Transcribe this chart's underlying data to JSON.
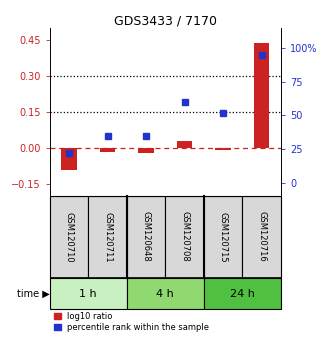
{
  "title": "GDS3433 / 7170",
  "samples": [
    "GSM120710",
    "GSM120711",
    "GSM120648",
    "GSM120708",
    "GSM120715",
    "GSM120716"
  ],
  "log10_ratio": [
    -0.09,
    -0.015,
    -0.02,
    0.03,
    -0.01,
    0.44
  ],
  "percentile_rank": [
    22,
    35,
    35,
    60,
    52,
    95
  ],
  "left_ylim": [
    -0.2,
    0.5
  ],
  "left_yticks": [
    -0.15,
    0.0,
    0.15,
    0.3,
    0.45
  ],
  "right_ylim": [
    -10,
    115
  ],
  "right_yticks": [
    0,
    25,
    50,
    75,
    100
  ],
  "right_yticklabels": [
    "0",
    "25",
    "50",
    "75",
    "100%"
  ],
  "hlines": [
    0.15,
    0.3
  ],
  "time_groups": [
    {
      "label": "1 h",
      "xleft": -0.5,
      "xright": 1.5,
      "xcenter": 0.5,
      "color": "#c8f0c0"
    },
    {
      "label": "4 h",
      "xleft": 1.5,
      "xright": 3.5,
      "xcenter": 2.5,
      "color": "#90d870"
    },
    {
      "label": "24 h",
      "xleft": 3.5,
      "xright": 5.5,
      "xcenter": 4.5,
      "color": "#50c040"
    }
  ],
  "bar_color_red": "#cc2222",
  "marker_color_blue": "#2233cc",
  "legend_red": "log10 ratio",
  "legend_blue": "percentile rank within the sample",
  "background_color": "#ffffff",
  "dashed_zero_color": "#cc2222",
  "tick_color_left": "#cc2222",
  "tick_color_right": "#2233cc"
}
